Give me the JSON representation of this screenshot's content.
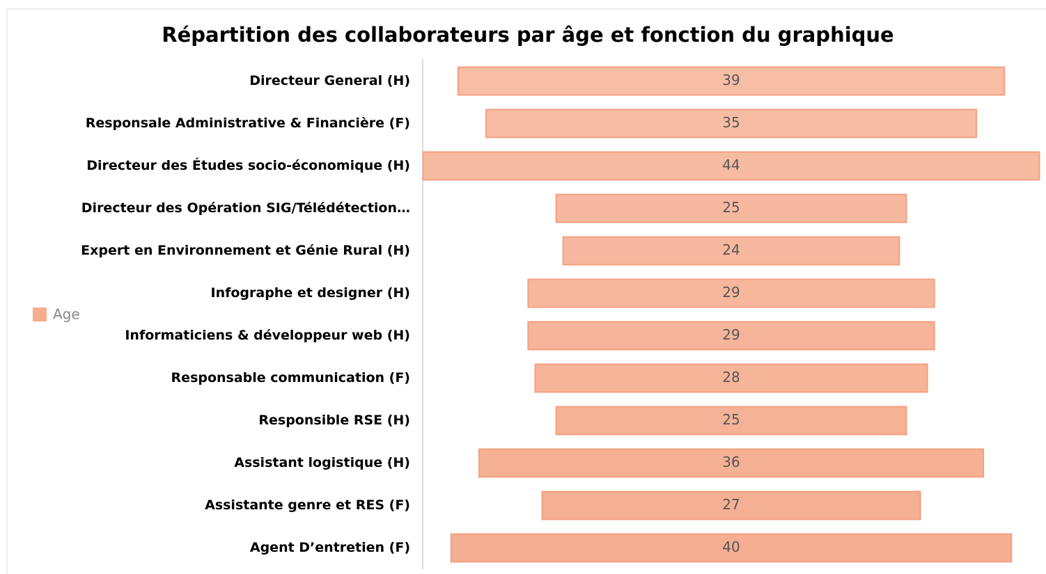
{
  "chart_data": {
    "type": "funnel",
    "title": "Répartition des collaborateurs par âge et fonction du graphique",
    "categories": [
      "Directeur General (H)",
      "Responsale Administrative & Financière (F)",
      "Directeur des Études socio-économique (H)",
      "Directeur des Opération SIG/Télédétection…",
      "Expert en Environnement et Génie Rural (H)",
      "Infographe et designer (H)",
      "Informaticiens & développeur web (H)",
      "Responsable communication (F)",
      "Responsible RSE (H)",
      "Assistant logistique (H)",
      "Assistante genre et RES (F)",
      "Agent D’entretien (F)"
    ],
    "series": [
      {
        "name": "Age",
        "color": "#f5ad8f",
        "values": [
          39,
          35,
          44,
          25,
          24,
          29,
          29,
          28,
          25,
          36,
          27,
          40
        ]
      }
    ],
    "legend": "left"
  }
}
